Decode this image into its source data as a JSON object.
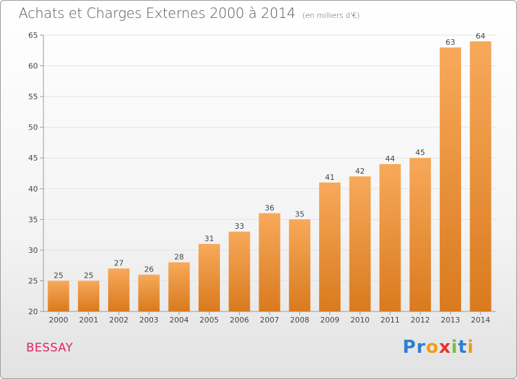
{
  "header": {
    "title": "Achats et Charges Externes 2000 à 2014",
    "subtitle": "(en milliers d'€)"
  },
  "footer": {
    "commune": "BESSAY",
    "logo_letters": [
      "P",
      "r",
      "o",
      "x",
      "i",
      "t",
      "i"
    ],
    "logo_colors": [
      "#2f7fd0",
      "#2f7fd0",
      "#f29b1a",
      "#e8332a",
      "#7cbf3a",
      "#2f7fd0",
      "#f29b1a"
    ]
  },
  "colors": {
    "bar_top": "#f7a95a",
    "bar_bottom": "#d97a1e",
    "grid": "#e3e3e3",
    "axis": "#999999"
  },
  "chart_data": {
    "type": "bar",
    "title": "Achats et Charges Externes 2000 à 2014",
    "subtitle": "(en milliers d'€)",
    "categories": [
      "2000",
      "2001",
      "2002",
      "2003",
      "2004",
      "2005",
      "2006",
      "2007",
      "2008",
      "2009",
      "2010",
      "2011",
      "2012",
      "2013",
      "2014"
    ],
    "values": [
      25,
      25,
      27,
      26,
      28,
      31,
      33,
      36,
      35,
      41,
      42,
      44,
      45,
      63,
      64
    ],
    "ylim": [
      20,
      65
    ],
    "yticks": [
      20,
      25,
      30,
      35,
      40,
      45,
      50,
      55,
      60,
      65
    ],
    "grid": true,
    "legend": "none"
  }
}
